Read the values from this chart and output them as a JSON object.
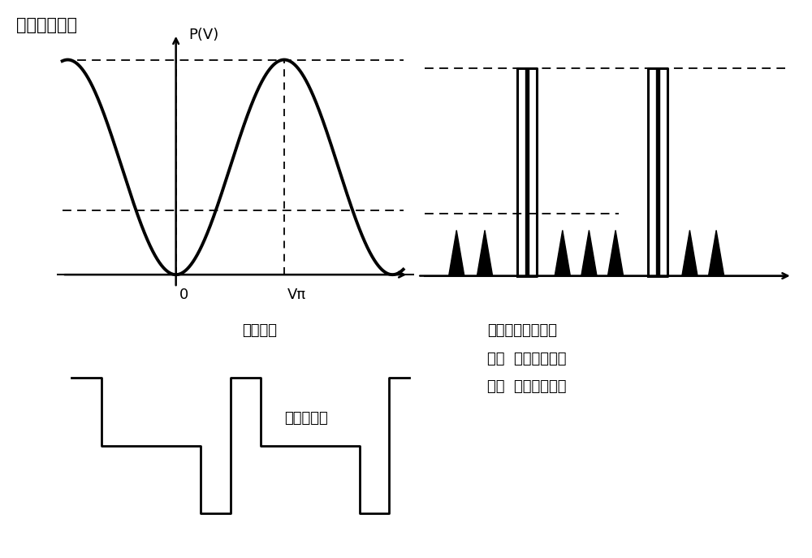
{
  "title_left": "调制传输函数",
  "ylabel_left": "P(V)",
  "xlabel_label": "驱动电压",
  "origin_label": "0",
  "vpi_label": "Vπ",
  "pulse_title": "飞秒激光脉冲提取",
  "pulse_high": "高：  提取的光脉冲",
  "pulse_low": "低：  泄漏的光脉冲",
  "sync_label": "同步电脉冲",
  "bg_color": "#ffffff",
  "curve_color": "#000000",
  "font_color": "#000000",
  "title_fontsize": 15,
  "label_fontsize": 13,
  "text_fontsize": 13
}
